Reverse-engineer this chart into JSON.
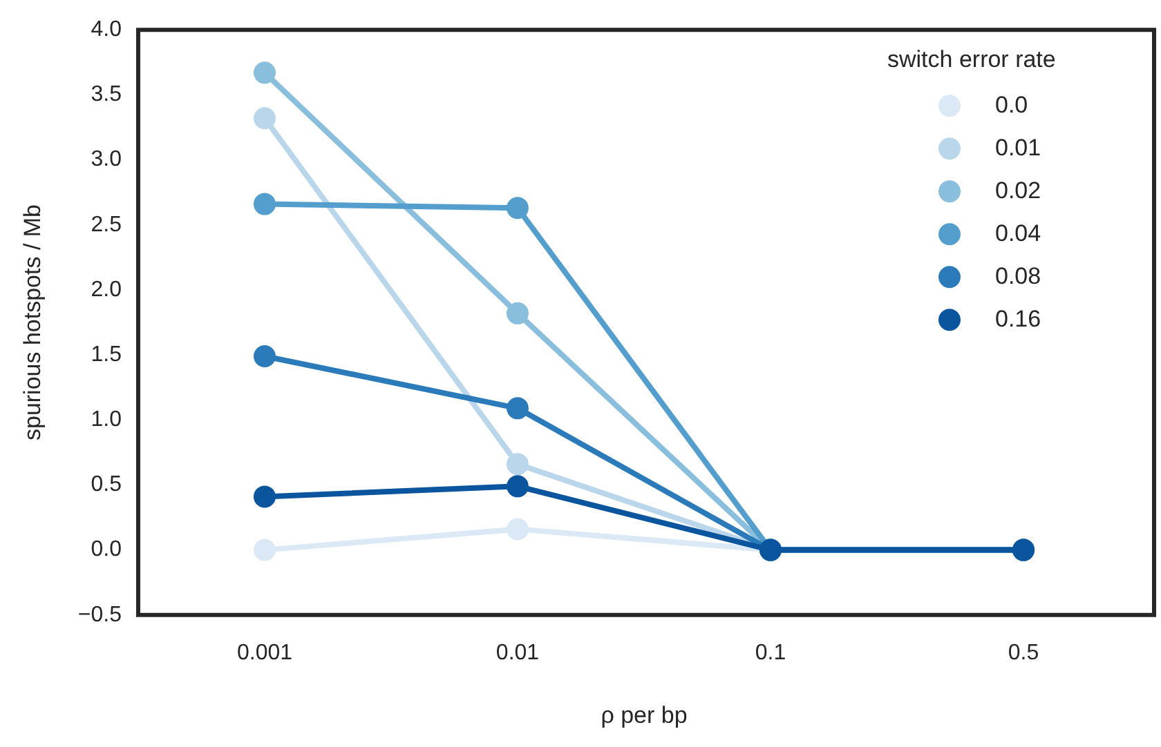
{
  "chart_data": {
    "type": "line",
    "xlabel": "ρ per bp",
    "ylabel": "spurious hotspots / Mb",
    "legend_title": "switch error rate",
    "legend": "top right",
    "marker": "circle",
    "grid": false,
    "categories": [
      "0.001",
      "0.01",
      "0.1",
      "0.5"
    ],
    "ylim": [
      -0.5,
      4.0
    ],
    "yticks": [
      {
        "value": -0.5,
        "label": "−0.5"
      },
      {
        "value": 0,
        "label": "0.0"
      },
      {
        "value": 0.5,
        "label": "0.5"
      },
      {
        "value": 1,
        "label": "1.0"
      },
      {
        "value": 1.5,
        "label": "1.5"
      },
      {
        "value": 2,
        "label": "2.0"
      },
      {
        "value": 2.5,
        "label": "2.5"
      },
      {
        "value": 3,
        "label": "3.0"
      },
      {
        "value": 3.5,
        "label": "3.5"
      },
      {
        "value": 4,
        "label": "4.0"
      }
    ],
    "series": [
      {
        "name": "0.0",
        "color": "#dbe9f6",
        "values": [
          0,
          0.16,
          0,
          0
        ]
      },
      {
        "name": "0.01",
        "color": "#bad6eb",
        "values": [
          3.32,
          0.66,
          0,
          0
        ]
      },
      {
        "name": "0.02",
        "color": "#89bedc",
        "values": [
          3.67,
          1.82,
          0,
          0
        ]
      },
      {
        "name": "0.04",
        "color": "#539ecd",
        "values": [
          2.66,
          2.63,
          0,
          0
        ]
      },
      {
        "name": "0.08",
        "color": "#2b7bba",
        "values": [
          1.49,
          1.09,
          0,
          0
        ]
      },
      {
        "name": "0.16",
        "color": "#0b559f",
        "values": [
          0.41,
          0.49,
          0,
          0
        ]
      }
    ]
  }
}
